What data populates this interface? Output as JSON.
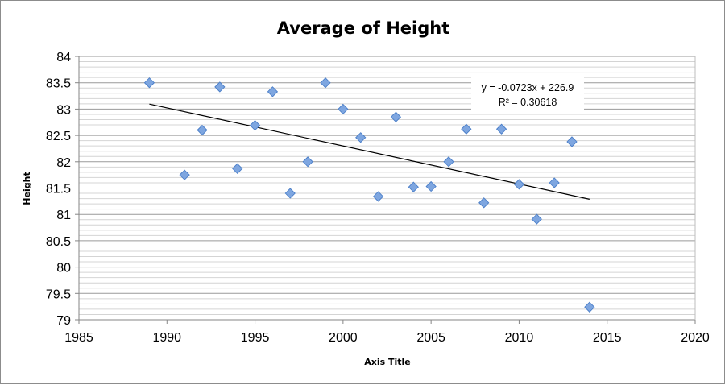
{
  "chart_data": {
    "type": "scatter",
    "title": "Average of Height",
    "xlabel": "Axis Title",
    "ylabel": "Height",
    "xlim": [
      1985,
      2020
    ],
    "ylim": [
      79,
      84
    ],
    "x_ticks": [
      "1985",
      "1990",
      "1995",
      "2000",
      "2005",
      "2010",
      "2015",
      "2020"
    ],
    "y_ticks": [
      "79",
      "79.5",
      "80",
      "80.5",
      "81",
      "81.5",
      "82",
      "82.5",
      "83",
      "83.5",
      "84"
    ],
    "grid": "horizontal",
    "series": [
      {
        "x": [
          1989,
          1991,
          1992,
          1993,
          1994,
          1995,
          1996,
          1997,
          1998,
          1999,
          2000,
          2001,
          2002,
          2003,
          2004,
          2005,
          2006,
          2007,
          2008,
          2009,
          2010,
          2011,
          2012,
          2013,
          2014
        ],
        "y": [
          83.5,
          81.75,
          82.6,
          83.42,
          81.87,
          82.69,
          83.33,
          81.4,
          82.0,
          83.5,
          83.0,
          82.46,
          81.34,
          82.85,
          81.52,
          81.53,
          82.0,
          82.62,
          81.22,
          82.62,
          81.57,
          80.91,
          81.6,
          82.38,
          79.24
        ],
        "color": "#7ea6e0"
      }
    ],
    "trendline": {
      "type": "linear",
      "x_range": [
        1989,
        2014
      ],
      "slope": -0.0723,
      "intercept": 226.9,
      "equation": "y = -0.0723x + 226.9",
      "r_squared": "R² = 0.30618",
      "color": "#000000"
    }
  }
}
